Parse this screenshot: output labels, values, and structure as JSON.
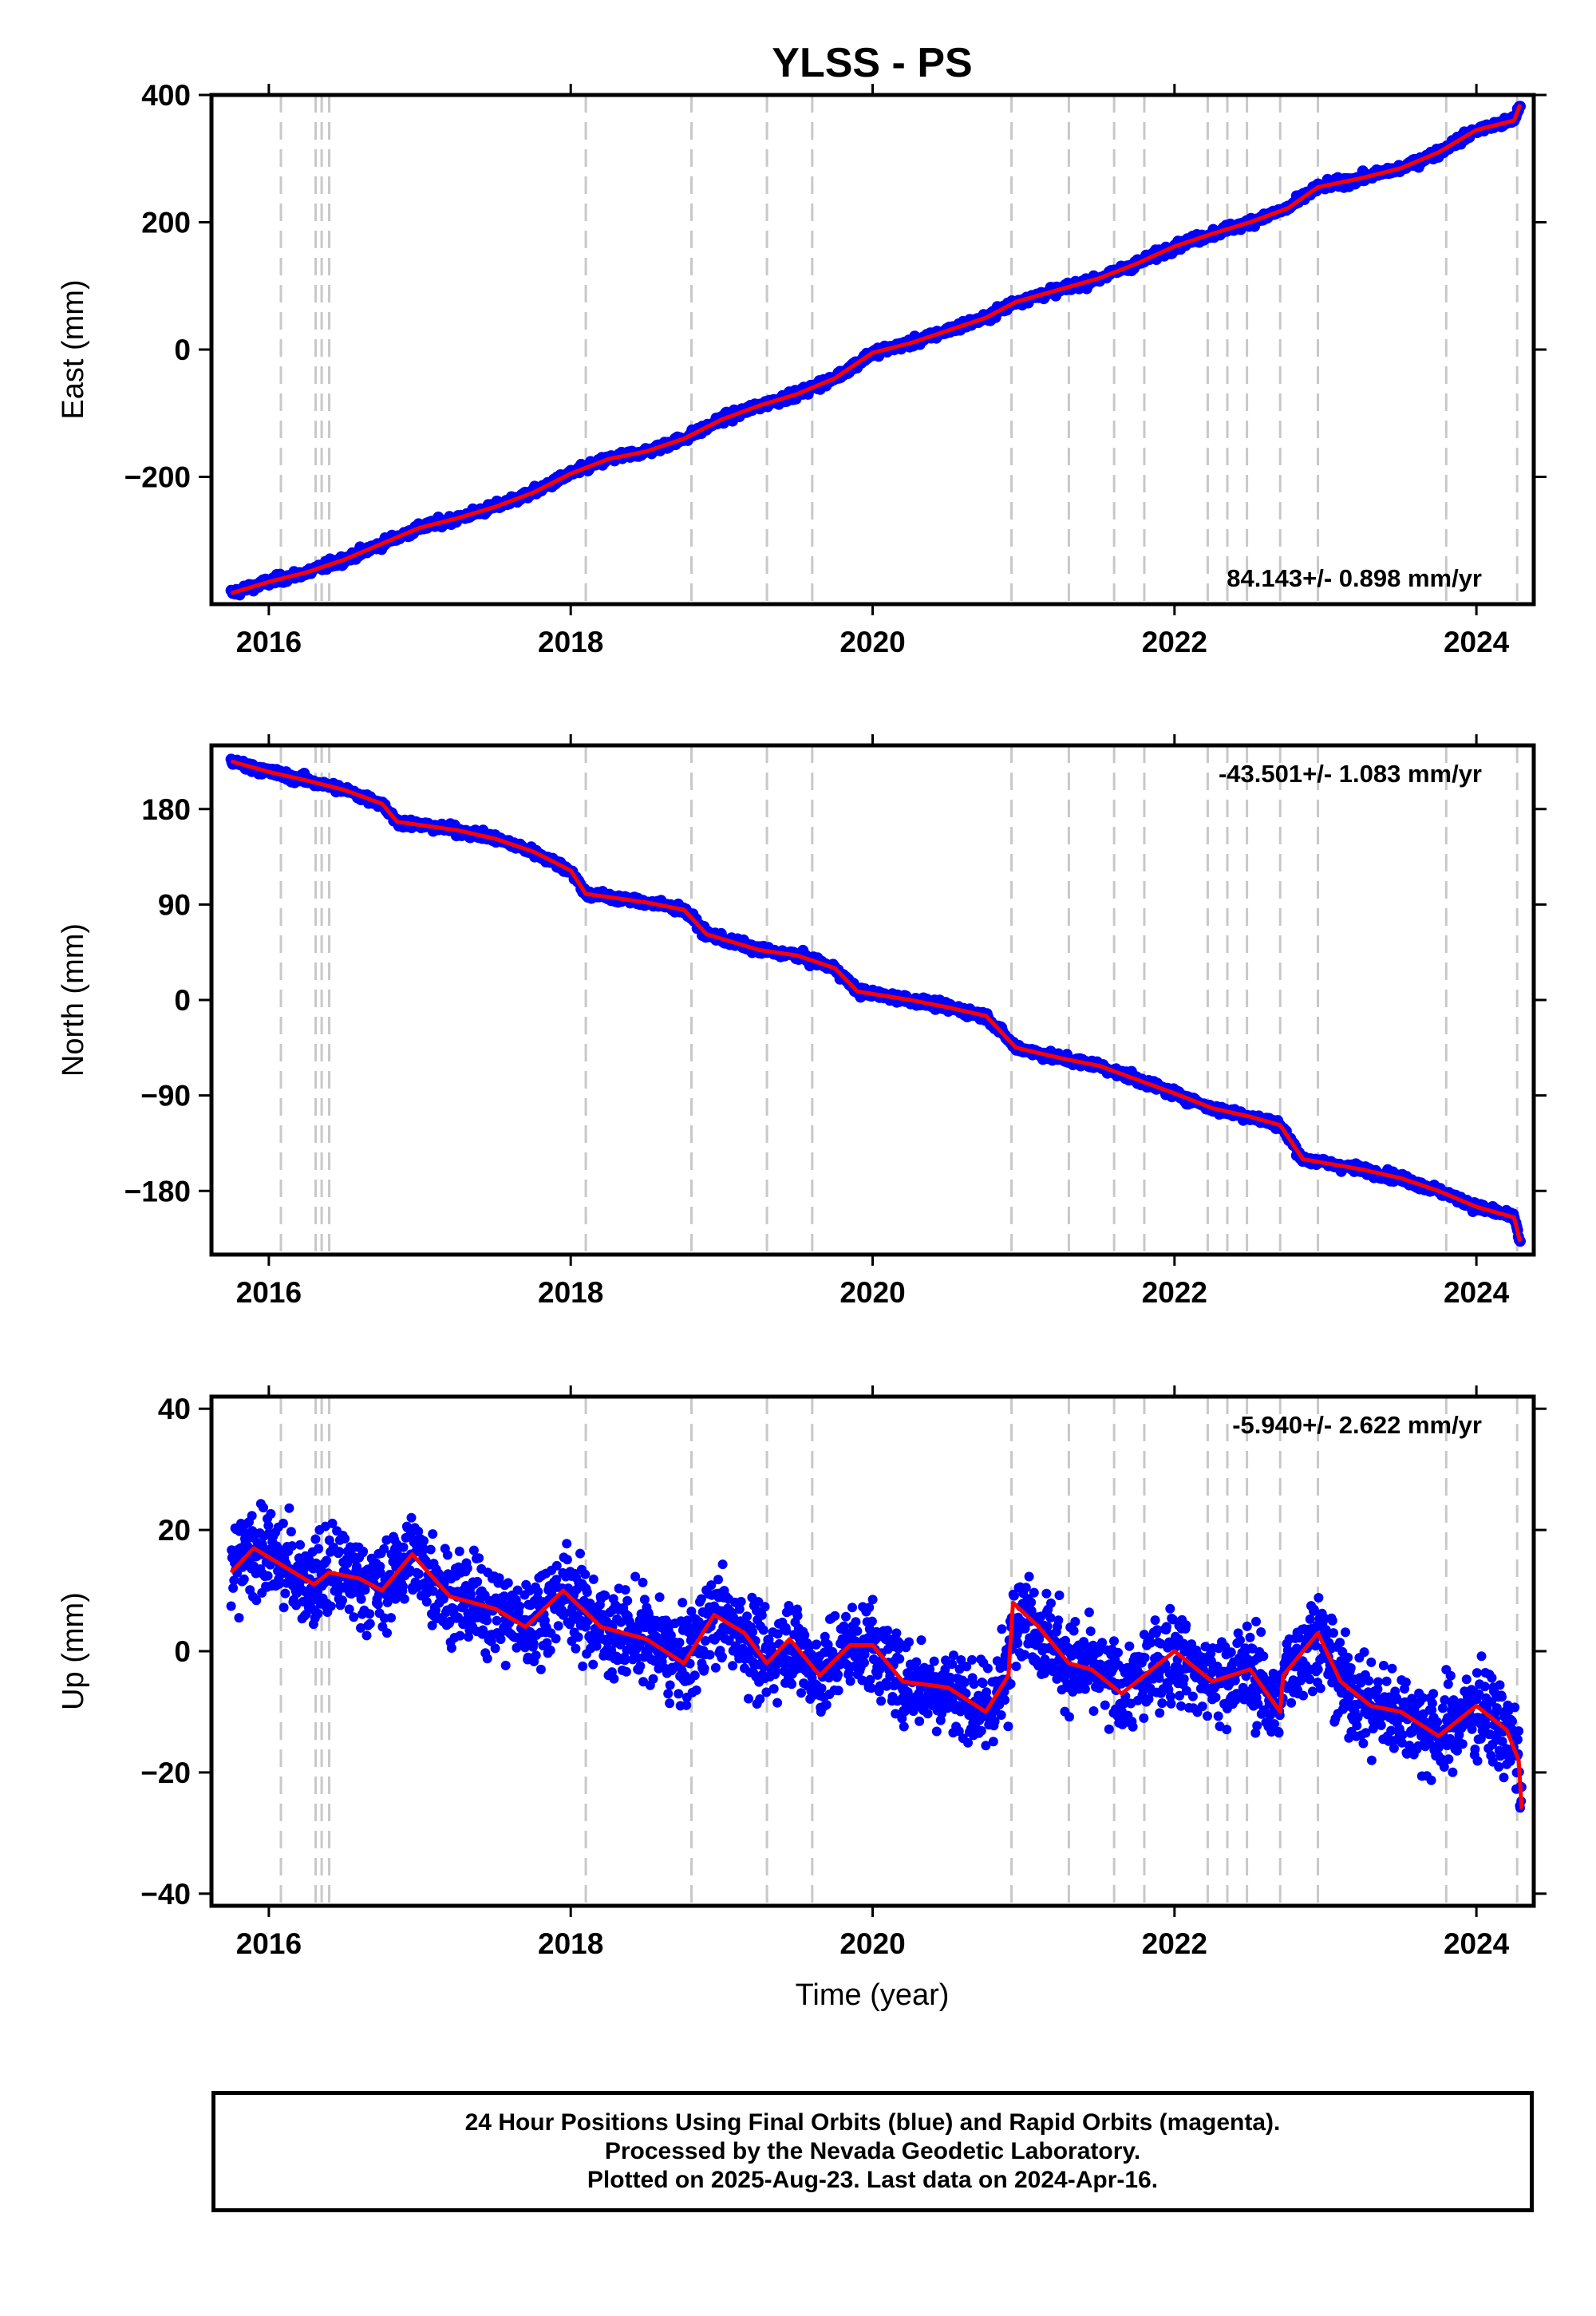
{
  "chart_data": {
    "title": "YLSS - PS",
    "xlabel": "Time (year)",
    "xlim": [
      2015.62,
      2024.38
    ],
    "x_ticks": [
      2016,
      2018,
      2020,
      2022,
      2024
    ],
    "x_tick_labels": [
      "2016",
      "2018",
      "2020",
      "2022",
      "2024"
    ],
    "event_lines": [
      2016.08,
      2016.31,
      2016.35,
      2016.4,
      2018.1,
      2018.8,
      2019.3,
      2019.6,
      2020.92,
      2021.3,
      2021.6,
      2021.8,
      2022.22,
      2022.35,
      2022.48,
      2022.7,
      2022.95,
      2023.8,
      2024.27
    ],
    "marker_color": "#0000ff",
    "fit_color": "#ff0000",
    "grid_line_color": "#c8c8c8",
    "subplots": [
      {
        "type": "scatter",
        "ylabel": "East (mm)",
        "ylim": [
          -400,
          400
        ],
        "y_ticks": [
          400,
          200,
          0,
          -200
        ],
        "y_tick_labels": [
          "400",
          "200",
          "0",
          "−200"
        ],
        "rate_label": "84.143+/- 0.898 mm/yr",
        "rate_position": "bottom-right",
        "series": [
          {
            "values": [
              [
                2015.75,
                -383
              ],
              [
                2016.0,
                -365
              ],
              [
                2016.25,
                -350
              ],
              [
                2016.5,
                -330
              ],
              [
                2016.75,
                -305
              ],
              [
                2017.0,
                -280
              ],
              [
                2017.25,
                -265
              ],
              [
                2017.5,
                -247
              ],
              [
                2017.75,
                -225
              ],
              [
                2018.0,
                -195
              ],
              [
                2018.25,
                -172
              ],
              [
                2018.5,
                -160
              ],
              [
                2018.75,
                -140
              ],
              [
                2019.0,
                -110
              ],
              [
                2019.25,
                -88
              ],
              [
                2019.5,
                -70
              ],
              [
                2019.75,
                -45
              ],
              [
                2020.0,
                -5
              ],
              [
                2020.25,
                10
              ],
              [
                2020.5,
                30
              ],
              [
                2020.75,
                50
              ],
              [
                2020.95,
                75
              ],
              [
                2021.25,
                95
              ],
              [
                2021.5,
                112
              ],
              [
                2021.75,
                135
              ],
              [
                2022.0,
                162
              ],
              [
                2022.25,
                182
              ],
              [
                2022.5,
                200
              ],
              [
                2022.75,
                222
              ],
              [
                2022.95,
                255
              ],
              [
                2023.25,
                270
              ],
              [
                2023.5,
                285
              ],
              [
                2023.75,
                310
              ],
              [
                2024.0,
                345
              ],
              [
                2024.25,
                360
              ],
              [
                2024.29,
                385
              ]
            ]
          }
        ]
      },
      {
        "type": "scatter",
        "ylabel": "North (mm)",
        "ylim": [
          -240,
          240
        ],
        "y_ticks": [
          180,
          90,
          0,
          -90,
          -180
        ],
        "y_tick_labels": [
          "180",
          "90",
          "0",
          "−90",
          "−180"
        ],
        "rate_label": "-43.501+/- 1.083 mm/yr",
        "rate_position": "top-right",
        "series": [
          {
            "values": [
              [
                2015.75,
                225
              ],
              [
                2016.0,
                215
              ],
              [
                2016.25,
                207
              ],
              [
                2016.5,
                198
              ],
              [
                2016.75,
                185
              ],
              [
                2016.85,
                168
              ],
              [
                2017.25,
                160
              ],
              [
                2017.5,
                152
              ],
              [
                2017.75,
                140
              ],
              [
                2018.0,
                122
              ],
              [
                2018.1,
                100
              ],
              [
                2018.5,
                92
              ],
              [
                2018.75,
                85
              ],
              [
                2018.9,
                62
              ],
              [
                2019.25,
                47
              ],
              [
                2019.5,
                42
              ],
              [
                2019.75,
                30
              ],
              [
                2019.9,
                8
              ],
              [
                2020.25,
                0
              ],
              [
                2020.5,
                -7
              ],
              [
                2020.75,
                -15
              ],
              [
                2020.95,
                -45
              ],
              [
                2021.25,
                -55
              ],
              [
                2021.5,
                -62
              ],
              [
                2021.75,
                -75
              ],
              [
                2022.0,
                -88
              ],
              [
                2022.25,
                -102
              ],
              [
                2022.5,
                -110
              ],
              [
                2022.7,
                -118
              ],
              [
                2022.85,
                -150
              ],
              [
                2023.25,
                -160
              ],
              [
                2023.5,
                -168
              ],
              [
                2023.75,
                -180
              ],
              [
                2024.0,
                -195
              ],
              [
                2024.25,
                -205
              ],
              [
                2024.29,
                -228
              ]
            ]
          }
        ]
      },
      {
        "type": "scatter",
        "ylabel": "Up (mm)",
        "ylim": [
          -42,
          42
        ],
        "y_ticks": [
          40,
          20,
          0,
          -20,
          -40
        ],
        "y_tick_labels": [
          "40",
          "20",
          "0",
          "−20",
          "−40"
        ],
        "rate_label": "-5.940+/- 2.622 mm/yr",
        "rate_position": "top-right",
        "series": [
          {
            "values": [
              [
                2015.75,
                13
              ],
              [
                2015.9,
                17
              ],
              [
                2016.1,
                14
              ],
              [
                2016.3,
                11
              ],
              [
                2016.4,
                13
              ],
              [
                2016.6,
                12
              ],
              [
                2016.75,
                10
              ],
              [
                2016.95,
                16
              ],
              [
                2017.2,
                9
              ],
              [
                2017.5,
                7
              ],
              [
                2017.7,
                4
              ],
              [
                2017.95,
                10
              ],
              [
                2018.2,
                4
              ],
              [
                2018.5,
                2
              ],
              [
                2018.75,
                -2
              ],
              [
                2018.95,
                6
              ],
              [
                2019.15,
                3
              ],
              [
                2019.3,
                -2
              ],
              [
                2019.45,
                2
              ],
              [
                2019.65,
                -4
              ],
              [
                2019.85,
                1
              ],
              [
                2020.0,
                1
              ],
              [
                2020.2,
                -5
              ],
              [
                2020.5,
                -6
              ],
              [
                2020.75,
                -10
              ],
              [
                2020.9,
                -4
              ],
              [
                2020.93,
                8
              ],
              [
                2021.1,
                4
              ],
              [
                2021.3,
                -2
              ],
              [
                2021.45,
                -3
              ],
              [
                2021.65,
                -7
              ],
              [
                2021.8,
                -4
              ],
              [
                2022.0,
                0
              ],
              [
                2022.25,
                -5
              ],
              [
                2022.5,
                -3
              ],
              [
                2022.7,
                -10
              ],
              [
                2022.72,
                -4
              ],
              [
                2022.95,
                3
              ],
              [
                2023.1,
                -5
              ],
              [
                2023.3,
                -9
              ],
              [
                2023.5,
                -10
              ],
              [
                2023.75,
                -14
              ],
              [
                2024.0,
                -9
              ],
              [
                2024.2,
                -13
              ],
              [
                2024.28,
                -18
              ],
              [
                2024.3,
                -26
              ]
            ]
          }
        ]
      }
    ]
  },
  "footer": {
    "line1": "24 Hour Positions Using Final Orbits (blue) and Rapid Orbits (magenta).",
    "line2": "Processed by the Nevada Geodetic Laboratory.",
    "line3": "Plotted on 2025-Aug-23. Last data on 2024-Apr-16."
  }
}
